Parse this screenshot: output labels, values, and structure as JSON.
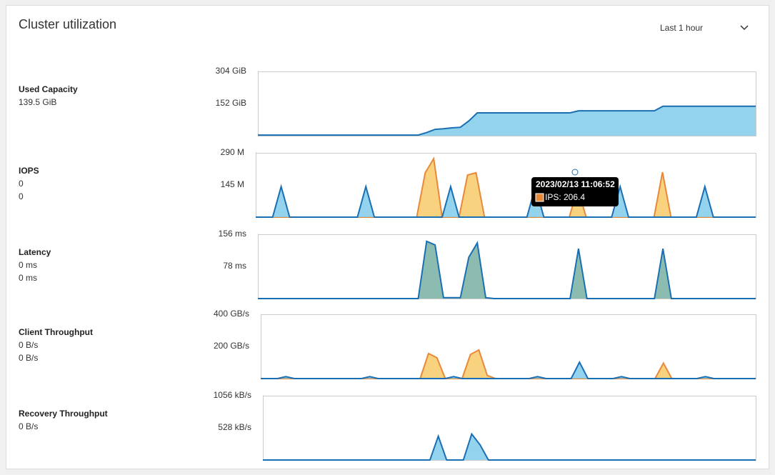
{
  "header": {
    "title": "Cluster utilization",
    "time_range": "Last 1 hour"
  },
  "chart_data": [
    {
      "type": "area",
      "label": "Used Capacity",
      "stats": [
        "139.5 GiB"
      ],
      "ylim": [
        0,
        304
      ],
      "yticks": [
        {
          "value": 304,
          "label": "304 GiB"
        },
        {
          "value": 152,
          "label": "152 GiB"
        }
      ],
      "series": [
        {
          "color": "#1a6fb3",
          "fill": "#87ceeb",
          "values": [
            3,
            3,
            3,
            3,
            3,
            3,
            3,
            3,
            3,
            3,
            3,
            3,
            3,
            3,
            3,
            3,
            3,
            3,
            3,
            3,
            15,
            30,
            33,
            37,
            40,
            70,
            108,
            108,
            108,
            108,
            108,
            108,
            108,
            108,
            108,
            108,
            108,
            108,
            118,
            118,
            118,
            118,
            118,
            118,
            118,
            118,
            118,
            118,
            139,
            139,
            139,
            139,
            139,
            139,
            139,
            139,
            139,
            139,
            139,
            139
          ]
        }
      ]
    },
    {
      "type": "area",
      "label": "IOPS",
      "stats": [
        "0",
        "0"
      ],
      "ylim": [
        0,
        290
      ],
      "yticks": [
        {
          "value": 290,
          "label": "290 M"
        },
        {
          "value": 145,
          "label": "145 M"
        }
      ],
      "tooltip": {
        "time": "2023/02/13 11:06:52",
        "text": "IPS: 206.4"
      },
      "series": [
        {
          "color": "#e8893a",
          "fill": "#f8cd72",
          "values": [
            0,
            0,
            0,
            0,
            0,
            0,
            0,
            0,
            0,
            0,
            0,
            0,
            0,
            0,
            0,
            0,
            0,
            0,
            0,
            0,
            200,
            264,
            0,
            0,
            0,
            190,
            200,
            0,
            0,
            0,
            0,
            0,
            0,
            0,
            0,
            0,
            0,
            0,
            130,
            0,
            0,
            0,
            0,
            0,
            0,
            0,
            0,
            0,
            203,
            0,
            0,
            0,
            0,
            0,
            0,
            0,
            0,
            0,
            0,
            0
          ]
        },
        {
          "color": "#1a6fb3",
          "fill": "#87ceeb",
          "values": [
            0,
            0,
            0,
            138,
            0,
            0,
            0,
            0,
            0,
            0,
            0,
            0,
            0,
            138,
            0,
            0,
            0,
            0,
            0,
            0,
            0,
            0,
            0,
            138,
            0,
            0,
            0,
            0,
            0,
            0,
            0,
            0,
            0,
            138,
            0,
            0,
            0,
            0,
            0,
            0,
            0,
            0,
            0,
            138,
            0,
            0,
            0,
            0,
            0,
            0,
            0,
            0,
            0,
            138,
            0,
            0,
            0,
            0,
            0,
            0
          ]
        }
      ]
    },
    {
      "type": "area",
      "label": "Latency",
      "stats": [
        "0 ms",
        "0 ms"
      ],
      "ylim": [
        0,
        156
      ],
      "yticks": [
        {
          "value": 156,
          "label": "156 ms"
        },
        {
          "value": 78,
          "label": "78 ms"
        }
      ],
      "series": [
        {
          "color": "#1a6fb3",
          "fill": "#7fb5a6",
          "values": [
            0,
            0,
            0,
            0,
            0,
            0,
            0,
            0,
            0,
            0,
            0,
            0,
            0,
            0,
            0,
            0,
            0,
            0,
            0,
            0,
            139,
            130,
            2,
            2,
            2,
            100,
            135,
            2,
            0,
            0,
            0,
            0,
            0,
            0,
            0,
            0,
            0,
            0,
            121,
            0,
            0,
            0,
            0,
            0,
            0,
            0,
            0,
            0,
            121,
            0,
            0,
            0,
            0,
            0,
            0,
            0,
            0,
            0,
            0,
            0
          ]
        }
      ]
    },
    {
      "type": "area",
      "label": "Client Throughput",
      "stats": [
        "0 B/s",
        "0 B/s"
      ],
      "ylim": [
        0,
        400
      ],
      "yticks": [
        {
          "value": 400,
          "label": "400 GB/s"
        },
        {
          "value": 200,
          "label": "200 GB/s"
        }
      ],
      "series": [
        {
          "color": "#e8893a",
          "fill": "#f8cd72",
          "values": [
            0,
            0,
            0,
            0,
            0,
            0,
            0,
            0,
            0,
            0,
            0,
            0,
            0,
            0,
            0,
            0,
            0,
            0,
            0,
            0,
            156,
            130,
            0,
            0,
            0,
            150,
            178,
            20,
            0,
            0,
            0,
            0,
            0,
            0,
            0,
            0,
            0,
            0,
            0,
            0,
            0,
            0,
            0,
            0,
            0,
            0,
            0,
            0,
            96,
            0,
            0,
            0,
            0,
            0,
            0,
            0,
            0,
            0,
            0,
            0
          ]
        },
        {
          "color": "#1a6fb3",
          "fill": "#87ceeb",
          "values": [
            0,
            0,
            0,
            12,
            0,
            0,
            0,
            0,
            0,
            0,
            0,
            0,
            0,
            12,
            0,
            0,
            0,
            0,
            0,
            0,
            0,
            0,
            0,
            12,
            0,
            0,
            0,
            0,
            0,
            0,
            0,
            0,
            0,
            12,
            0,
            0,
            0,
            0,
            102,
            0,
            0,
            0,
            0,
            12,
            0,
            0,
            0,
            0,
            0,
            0,
            0,
            0,
            0,
            12,
            0,
            0,
            0,
            0,
            0,
            0
          ]
        }
      ]
    },
    {
      "type": "area",
      "label": "Recovery Throughput",
      "stats": [
        "0 B/s"
      ],
      "ylim": [
        0,
        1056
      ],
      "yticks": [
        {
          "value": 1056,
          "label": "1056 kB/s"
        },
        {
          "value": 528,
          "label": "528 kB/s"
        }
      ],
      "series": [
        {
          "color": "#1a6fb3",
          "fill": "#87ceeb",
          "values": [
            0,
            0,
            0,
            0,
            0,
            0,
            0,
            0,
            0,
            0,
            0,
            0,
            0,
            0,
            0,
            0,
            0,
            0,
            0,
            0,
            0,
            392,
            0,
            0,
            0,
            427,
            249,
            0,
            0,
            0,
            0,
            0,
            0,
            0,
            0,
            0,
            0,
            0,
            0,
            0,
            0,
            0,
            0,
            0,
            0,
            0,
            0,
            0,
            0,
            0,
            0,
            0,
            0,
            0,
            0,
            0,
            0,
            0,
            0,
            0
          ]
        }
      ]
    }
  ]
}
